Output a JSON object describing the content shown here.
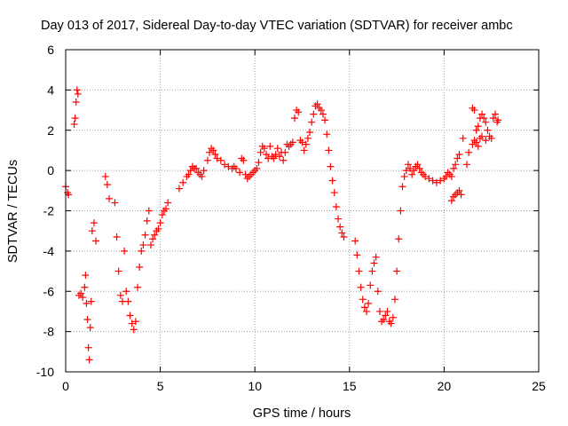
{
  "chart_data": {
    "type": "scatter",
    "title": "Day 013 of 2017, Sidereal Day-to-day VTEC variation (SDTVAR) for receiver ambc",
    "xlabel": "GPS time / hours",
    "ylabel": "SDTVAR / TECUs",
    "xlim": [
      0,
      25
    ],
    "ylim": [
      -10,
      6
    ],
    "xticks": [
      "0",
      "5",
      "10",
      "15",
      "20",
      "25"
    ],
    "yticks": [
      "-10",
      "-8",
      "-6",
      "-4",
      "-2",
      "0",
      "2",
      "4",
      "6"
    ],
    "grid": true,
    "marker": "+",
    "color": "#ff0000",
    "series": [
      {
        "name": "SDTVAR",
        "points": [
          [
            0.0,
            -0.8
          ],
          [
            0.1,
            -1.1
          ],
          [
            0.15,
            -1.2
          ],
          [
            0.45,
            2.3
          ],
          [
            0.5,
            2.6
          ],
          [
            0.55,
            3.4
          ],
          [
            0.6,
            4.0
          ],
          [
            0.65,
            3.8
          ],
          [
            0.7,
            -6.2
          ],
          [
            0.8,
            -6.1
          ],
          [
            0.9,
            -6.3
          ],
          [
            1.0,
            -5.8
          ],
          [
            1.05,
            -5.2
          ],
          [
            1.1,
            -6.6
          ],
          [
            1.15,
            -7.4
          ],
          [
            1.2,
            -8.8
          ],
          [
            1.25,
            -9.4
          ],
          [
            1.3,
            -7.8
          ],
          [
            1.35,
            -6.5
          ],
          [
            1.4,
            -3.0
          ],
          [
            1.5,
            -2.6
          ],
          [
            1.6,
            -3.5
          ],
          [
            2.1,
            -0.3
          ],
          [
            2.2,
            -0.7
          ],
          [
            2.3,
            -1.4
          ],
          [
            2.6,
            -1.6
          ],
          [
            2.7,
            -3.3
          ],
          [
            2.8,
            -5.0
          ],
          [
            2.9,
            -6.2
          ],
          [
            3.0,
            -6.5
          ],
          [
            3.1,
            -4.0
          ],
          [
            3.2,
            -6.0
          ],
          [
            3.3,
            -6.5
          ],
          [
            3.4,
            -7.2
          ],
          [
            3.5,
            -7.6
          ],
          [
            3.6,
            -7.9
          ],
          [
            3.7,
            -7.5
          ],
          [
            3.8,
            -5.8
          ],
          [
            3.9,
            -4.8
          ],
          [
            4.0,
            -4.0
          ],
          [
            4.1,
            -3.7
          ],
          [
            4.2,
            -3.2
          ],
          [
            4.3,
            -2.5
          ],
          [
            4.4,
            -2.0
          ],
          [
            4.5,
            -3.7
          ],
          [
            4.6,
            -3.4
          ],
          [
            4.7,
            -3.2
          ],
          [
            4.8,
            -3.0
          ],
          [
            4.9,
            -2.9
          ],
          [
            5.0,
            -2.6
          ],
          [
            5.1,
            -2.2
          ],
          [
            5.2,
            -2.0
          ],
          [
            5.3,
            -1.9
          ],
          [
            5.4,
            -1.6
          ],
          [
            6.0,
            -0.9
          ],
          [
            6.2,
            -0.6
          ],
          [
            6.4,
            -0.3
          ],
          [
            6.5,
            -0.2
          ],
          [
            6.6,
            0.0
          ],
          [
            6.7,
            0.2
          ],
          [
            6.8,
            0.1
          ],
          [
            6.9,
            0.1
          ],
          [
            7.0,
            -0.1
          ],
          [
            7.1,
            -0.2
          ],
          [
            7.2,
            -0.3
          ],
          [
            7.3,
            0.0
          ],
          [
            7.5,
            0.5
          ],
          [
            7.6,
            0.9
          ],
          [
            7.7,
            1.1
          ],
          [
            7.8,
            1.0
          ],
          [
            7.9,
            0.8
          ],
          [
            8.0,
            0.6
          ],
          [
            8.2,
            0.5
          ],
          [
            8.4,
            0.3
          ],
          [
            8.6,
            0.2
          ],
          [
            8.8,
            0.1
          ],
          [
            8.9,
            0.2
          ],
          [
            9.0,
            0.1
          ],
          [
            9.2,
            -0.1
          ],
          [
            9.3,
            0.6
          ],
          [
            9.4,
            0.5
          ],
          [
            9.5,
            -0.2
          ],
          [
            9.6,
            -0.4
          ],
          [
            9.7,
            -0.3
          ],
          [
            9.8,
            -0.2
          ],
          [
            9.9,
            -0.1
          ],
          [
            10.0,
            0.0
          ],
          [
            10.1,
            0.1
          ],
          [
            10.2,
            0.4
          ],
          [
            10.3,
            0.9
          ],
          [
            10.4,
            1.2
          ],
          [
            10.5,
            1.1
          ],
          [
            10.6,
            0.8
          ],
          [
            10.7,
            0.6
          ],
          [
            10.8,
            1.2
          ],
          [
            10.9,
            0.7
          ],
          [
            11.0,
            0.6
          ],
          [
            11.1,
            0.8
          ],
          [
            11.2,
            1.1
          ],
          [
            11.3,
            0.7
          ],
          [
            11.4,
            0.9
          ],
          [
            11.5,
            0.5
          ],
          [
            11.6,
            0.9
          ],
          [
            11.7,
            1.3
          ],
          [
            11.8,
            1.2
          ],
          [
            11.9,
            1.3
          ],
          [
            12.0,
            1.4
          ],
          [
            12.1,
            2.6
          ],
          [
            12.2,
            3.0
          ],
          [
            12.3,
            2.9
          ],
          [
            12.4,
            1.5
          ],
          [
            12.5,
            1.4
          ],
          [
            12.6,
            1.0
          ],
          [
            12.7,
            1.3
          ],
          [
            12.8,
            1.6
          ],
          [
            12.9,
            1.9
          ],
          [
            13.0,
            2.4
          ],
          [
            13.1,
            2.8
          ],
          [
            13.2,
            3.2
          ],
          [
            13.3,
            3.3
          ],
          [
            13.4,
            3.1
          ],
          [
            13.5,
            3.0
          ],
          [
            13.6,
            2.8
          ],
          [
            13.7,
            2.5
          ],
          [
            13.8,
            1.8
          ],
          [
            13.9,
            1.0
          ],
          [
            14.0,
            0.2
          ],
          [
            14.1,
            -0.5
          ],
          [
            14.2,
            -1.1
          ],
          [
            14.3,
            -1.8
          ],
          [
            14.4,
            -2.4
          ],
          [
            14.5,
            -2.8
          ],
          [
            14.6,
            -3.1
          ],
          [
            14.7,
            -3.3
          ],
          [
            15.3,
            -3.5
          ],
          [
            15.4,
            -4.2
          ],
          [
            15.5,
            -5.0
          ],
          [
            15.6,
            -5.8
          ],
          [
            15.7,
            -6.4
          ],
          [
            15.8,
            -6.8
          ],
          [
            15.9,
            -7.0
          ],
          [
            16.0,
            -6.6
          ],
          [
            16.1,
            -5.7
          ],
          [
            16.2,
            -5.0
          ],
          [
            16.3,
            -4.6
          ],
          [
            16.4,
            -4.3
          ],
          [
            16.5,
            -6.0
          ],
          [
            16.6,
            -7.0
          ],
          [
            16.7,
            -7.5
          ],
          [
            16.8,
            -7.4
          ],
          [
            16.9,
            -7.2
          ],
          [
            17.0,
            -7.0
          ],
          [
            17.1,
            -7.5
          ],
          [
            17.2,
            -7.6
          ],
          [
            17.3,
            -7.3
          ],
          [
            17.4,
            -6.4
          ],
          [
            17.5,
            -5.0
          ],
          [
            17.6,
            -3.4
          ],
          [
            17.7,
            -2.0
          ],
          [
            17.8,
            -0.8
          ],
          [
            17.9,
            -0.3
          ],
          [
            18.0,
            0.0
          ],
          [
            18.1,
            0.3
          ],
          [
            18.2,
            0.1
          ],
          [
            18.3,
            -0.2
          ],
          [
            18.4,
            0.0
          ],
          [
            18.5,
            0.2
          ],
          [
            18.6,
            0.3
          ],
          [
            18.7,
            0.1
          ],
          [
            18.8,
            -0.1
          ],
          [
            18.9,
            -0.2
          ],
          [
            19.0,
            -0.3
          ],
          [
            19.2,
            -0.4
          ],
          [
            19.4,
            -0.5
          ],
          [
            19.6,
            -0.6
          ],
          [
            19.8,
            -0.5
          ],
          [
            20.0,
            -0.4
          ],
          [
            20.1,
            -0.3
          ],
          [
            20.2,
            -0.1
          ],
          [
            20.3,
            -0.2
          ],
          [
            20.4,
            -0.3
          ],
          [
            20.5,
            0.1
          ],
          [
            20.6,
            0.3
          ],
          [
            20.7,
            0.6
          ],
          [
            20.8,
            0.8
          ],
          [
            20.4,
            -1.5
          ],
          [
            20.5,
            -1.3
          ],
          [
            20.6,
            -1.2
          ],
          [
            20.7,
            -1.1
          ],
          [
            20.8,
            -1.0
          ],
          [
            20.9,
            -1.2
          ],
          [
            21.0,
            1.6
          ],
          [
            21.2,
            0.3
          ],
          [
            21.3,
            0.9
          ],
          [
            21.5,
            3.1
          ],
          [
            21.6,
            3.0
          ],
          [
            21.7,
            2.0
          ],
          [
            21.8,
            2.2
          ],
          [
            21.9,
            2.6
          ],
          [
            22.0,
            2.8
          ],
          [
            22.1,
            2.6
          ],
          [
            22.2,
            2.4
          ],
          [
            22.3,
            2.0
          ],
          [
            21.5,
            1.3
          ],
          [
            21.6,
            1.5
          ],
          [
            21.7,
            1.4
          ],
          [
            21.8,
            1.2
          ],
          [
            21.9,
            1.6
          ],
          [
            22.0,
            1.7
          ],
          [
            22.2,
            1.5
          ],
          [
            22.4,
            1.7
          ],
          [
            22.5,
            1.6
          ],
          [
            22.6,
            2.6
          ],
          [
            22.7,
            2.8
          ],
          [
            22.8,
            2.4
          ],
          [
            22.85,
            2.5
          ]
        ]
      }
    ]
  }
}
